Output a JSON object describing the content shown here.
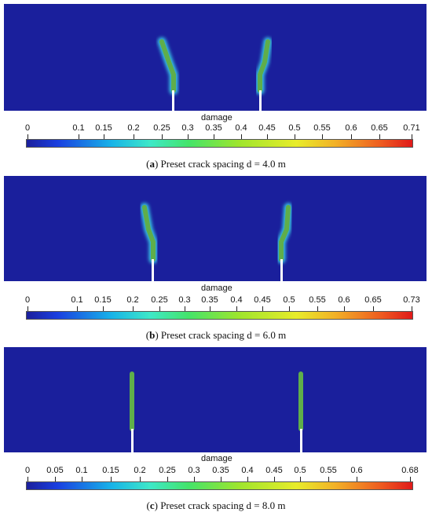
{
  "panels": [
    {
      "legend_title": "damage",
      "ticks": [
        "0",
        "0.1",
        "0.15",
        "0.2",
        "0.25",
        "0.3",
        "0.35",
        "0.4",
        "0.45",
        "0.5",
        "0.55",
        "0.6",
        "0.65",
        "0.71"
      ],
      "caption_letter": "a",
      "caption_text": "Preset crack spacing d = 4.0 m"
    },
    {
      "legend_title": "damage",
      "ticks": [
        "0",
        "0.1",
        "0.15",
        "0.2",
        "0.25",
        "0.3",
        "0.35",
        "0.4",
        "0.45",
        "0.5",
        "0.55",
        "0.6",
        "0.65",
        "0.73"
      ],
      "caption_letter": "b",
      "caption_text": "Preset crack spacing d = 6.0 m"
    },
    {
      "legend_title": "damage",
      "ticks": [
        "0",
        "0.05",
        "0.1",
        "0.15",
        "0.2",
        "0.25",
        "0.3",
        "0.35",
        "0.4",
        "0.45",
        "0.5",
        "0.55",
        "0.6",
        "0.68"
      ],
      "caption_letter": "c",
      "caption_text": "Preset crack spacing d = 8.0 m"
    }
  ]
}
